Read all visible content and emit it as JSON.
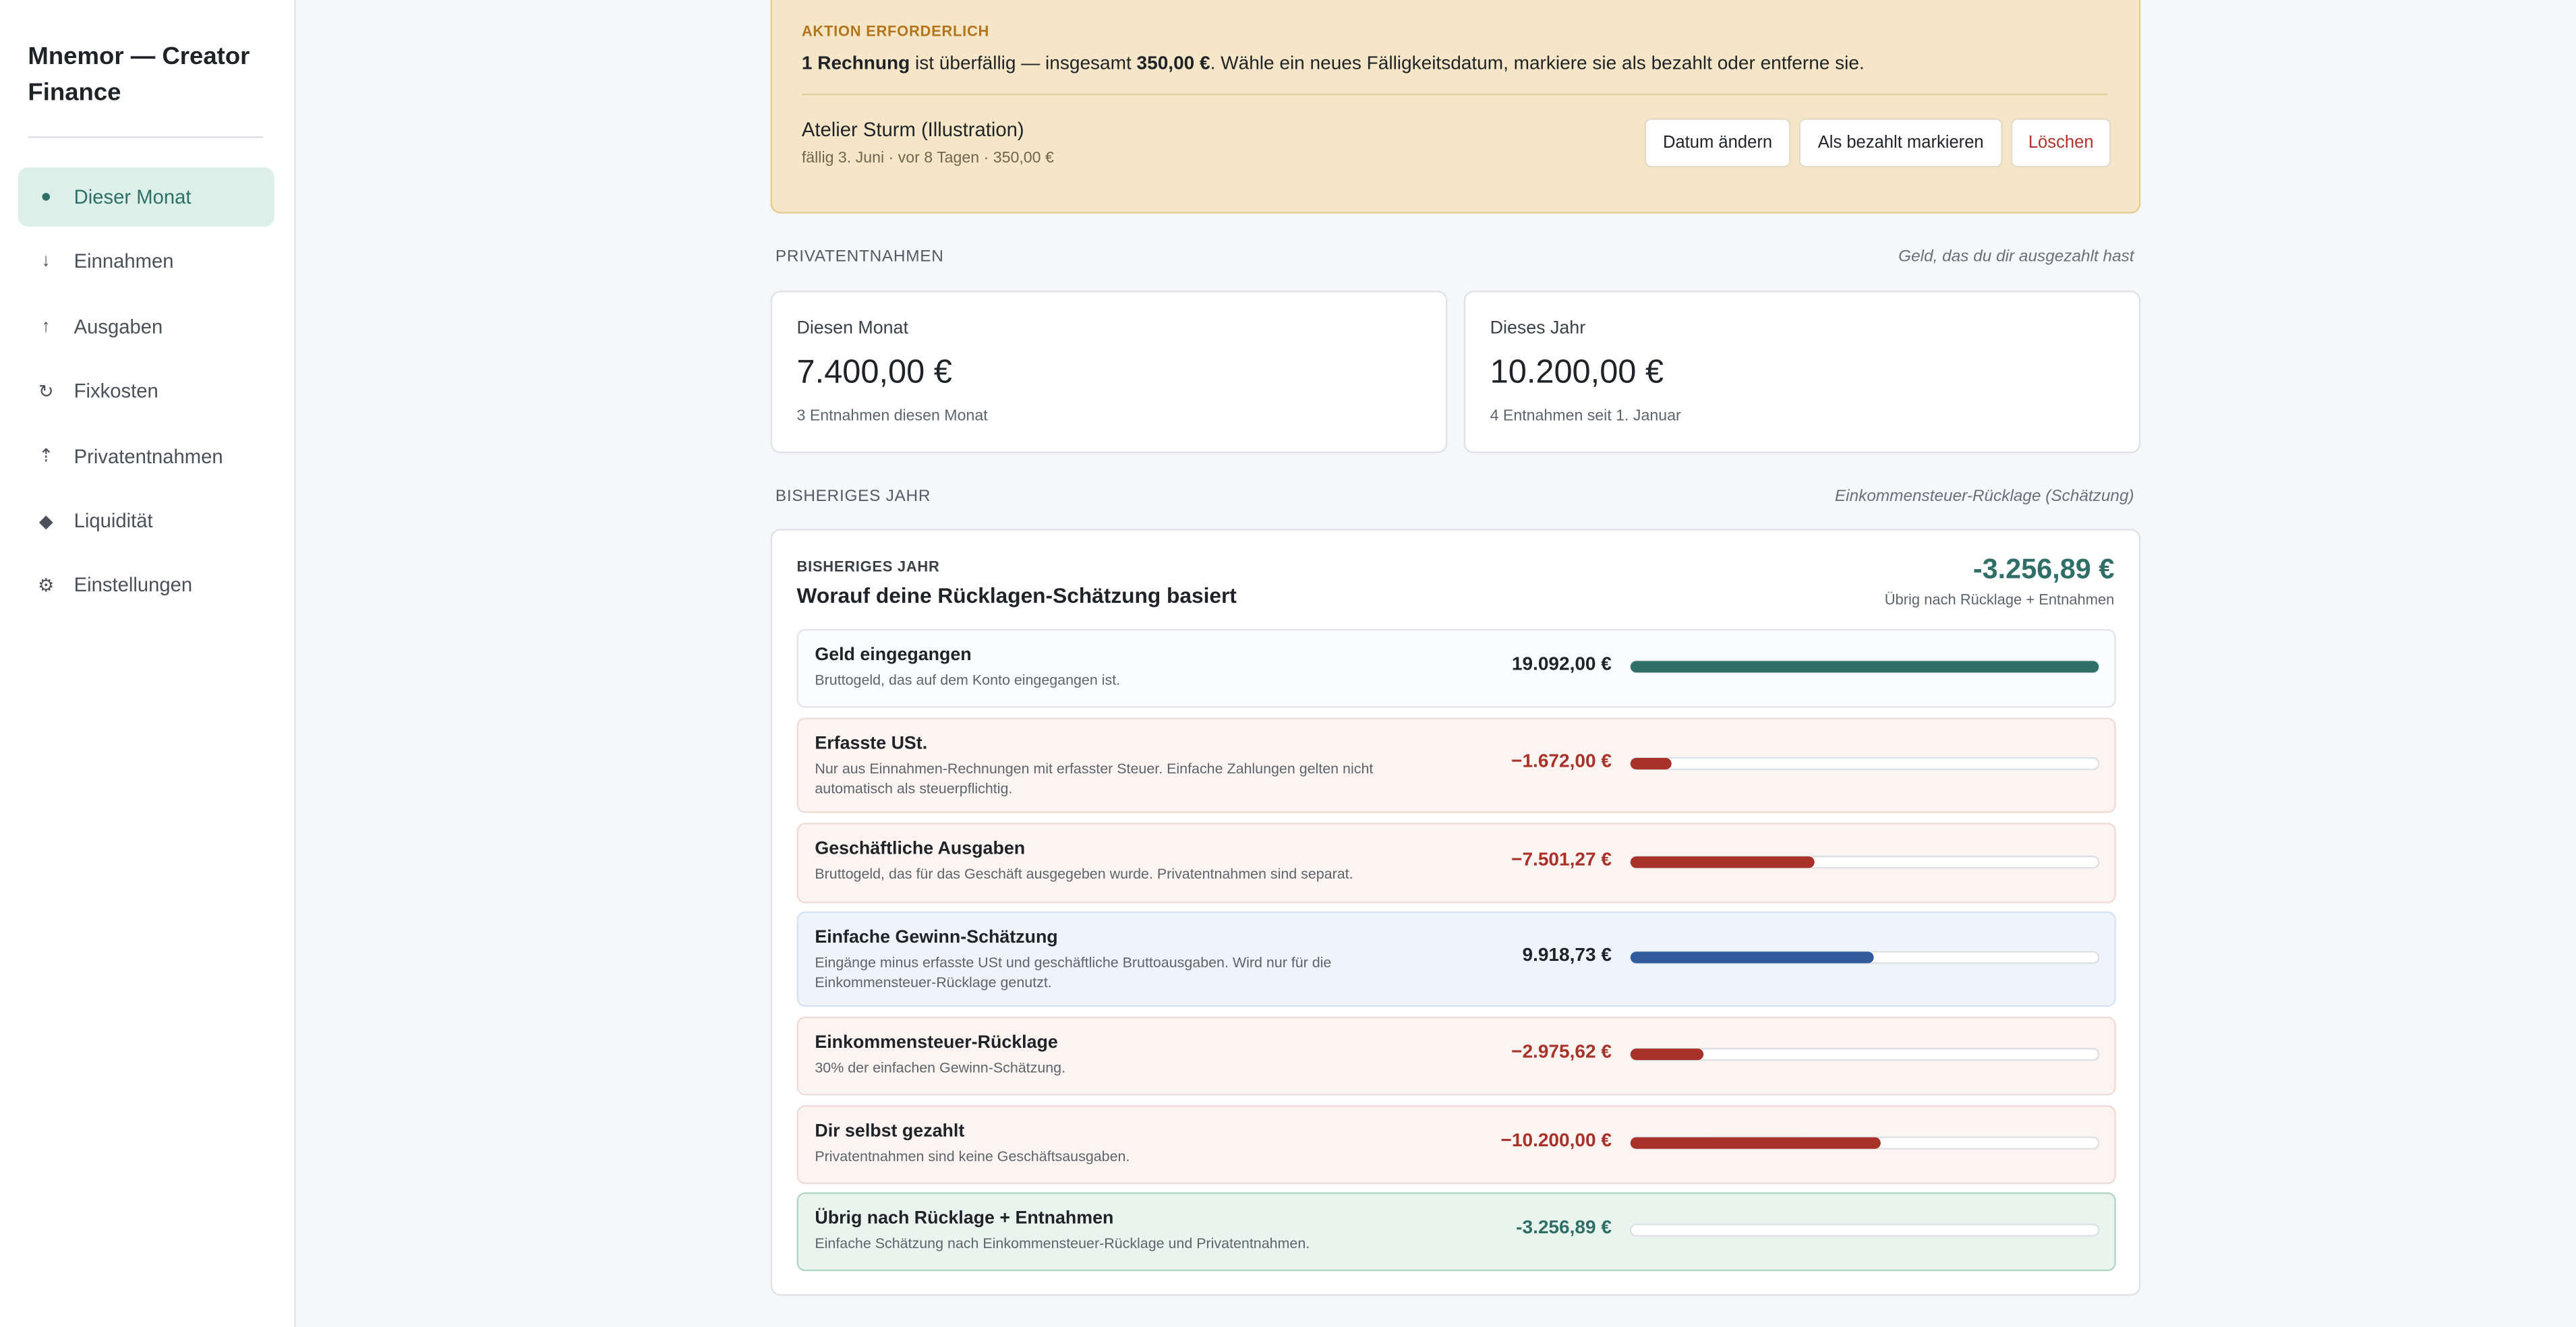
{
  "sidebar": {
    "title": "Mnemor — Creator Finance",
    "nav": [
      {
        "icon": "●",
        "label": "Dieser Monat",
        "active": true
      },
      {
        "icon": "↓",
        "label": "Einnahmen"
      },
      {
        "icon": "↑",
        "label": "Ausgaben"
      },
      {
        "icon": "↻",
        "label": "Fixkosten"
      },
      {
        "icon": "⇡",
        "label": "Privatentnahmen"
      },
      {
        "icon": "◆",
        "label": "Liquidität"
      },
      {
        "icon": "⚙",
        "label": "Einstellungen"
      }
    ]
  },
  "alert": {
    "kicker": "AKTION ERFORDERLICH",
    "count": "1 Rechnung",
    "text1": " ist überfällig — insgesamt ",
    "total": "350,00 €",
    "text2": ". Wähle ein neues Fälligkeitsdatum, markiere sie als bezahlt oder entferne sie.",
    "invoice": {
      "name": "Atelier Sturm (Illustration)",
      "meta": "fällig 3. Juni · vor 8 Tagen · 350,00 €"
    },
    "buttons": [
      "Datum ändern",
      "Als bezahlt markieren",
      "Löschen"
    ]
  },
  "withdrawals": {
    "heading": "PRIVATENTNAHMEN",
    "note": "Geld, das du dir ausgezahlt hast",
    "cards": [
      {
        "label": "Diesen Monat",
        "value": "7.400,00 €",
        "sub": "3 Entnahmen diesen Monat"
      },
      {
        "label": "Dieses Jahr",
        "value": "10.200,00 €",
        "sub": "4 Entnahmen seit 1. Januar"
      }
    ]
  },
  "year": {
    "heading": "BISHERIGES JAHR",
    "note": "Einkommensteuer-Rücklage (Schätzung)",
    "kicker": "BISHERIGES JAHR",
    "title": "Worauf deine Rücklagen-Schätzung basiert",
    "result": "-3.256,89 €",
    "result_sub": "Übrig nach Rücklage + Entnahmen",
    "rows": [
      {
        "label": "Geld eingegangen",
        "desc": "Bruttogeld, das auf dem Konto eingegangen ist.",
        "value": 19092.0,
        "value_label": "19.092,00 €",
        "color": "#2f6f67",
        "bg": "#fbfcfd",
        "border": "#e2e6ea",
        "text": "#1f2328"
      },
      {
        "label": "Erfasste USt.",
        "desc": "Nur aus Einnahmen-Rechnungen mit erfasster Steuer. Einfache Zahlungen gelten nicht automatisch als steuerpflichtig.",
        "value": -1672.0,
        "value_label": "−1.672,00 €",
        "color": "#a8322a",
        "bg": "#fcf4f1",
        "border": "#eedcd6",
        "text": "#a8322a"
      },
      {
        "label": "Geschäftliche Ausgaben",
        "desc": "Bruttogeld, das für das Geschäft ausgegeben wurde. Privatentnahmen sind separat.",
        "value": -7501.27,
        "value_label": "−7.501,27 €",
        "color": "#a8322a",
        "bg": "#fcf4f1",
        "border": "#eedcd6",
        "text": "#a8322a"
      },
      {
        "label": "Einfache Gewinn-Schätzung",
        "desc": "Eingänge minus erfasste USt und geschäftliche Bruttoausgaben. Wird nur für die Einkommensteuer-Rücklage genutzt.",
        "value": 9918.73,
        "value_label": "9.918,73 €",
        "color": "#2f5a9c",
        "bg": "#eef4fc",
        "border": "#d8e3f1",
        "text": "#1f2328"
      },
      {
        "label": "Einkommensteuer-Rücklage",
        "desc": "30% der einfachen Gewinn-Schätzung.",
        "value": -2975.62,
        "value_label": "−2.975,62 €",
        "color": "#a8322a",
        "bg": "#fcf4f1",
        "border": "#eedcd6",
        "text": "#a8322a"
      },
      {
        "label": "Dir selbst gezahlt",
        "desc": "Privatentnahmen sind keine Geschäftsausgaben.",
        "value": -10200.0,
        "value_label": "−10.200,00 €",
        "color": "#a8322a",
        "bg": "#fcf4f1",
        "border": "#eedcd6",
        "text": "#a8322a"
      },
      {
        "label": "Übrig nach Rücklage + Entnahmen",
        "desc": "Einfache Schätzung nach Einkommensteuer-Rücklage und Privatentnahmen.",
        "value": -3256.89,
        "value_label": "-3.256,89 €",
        "color": null,
        "bg": "#eaf4ef",
        "border": "#b5d5c7",
        "text": "#2f6f67"
      }
    ]
  }
}
